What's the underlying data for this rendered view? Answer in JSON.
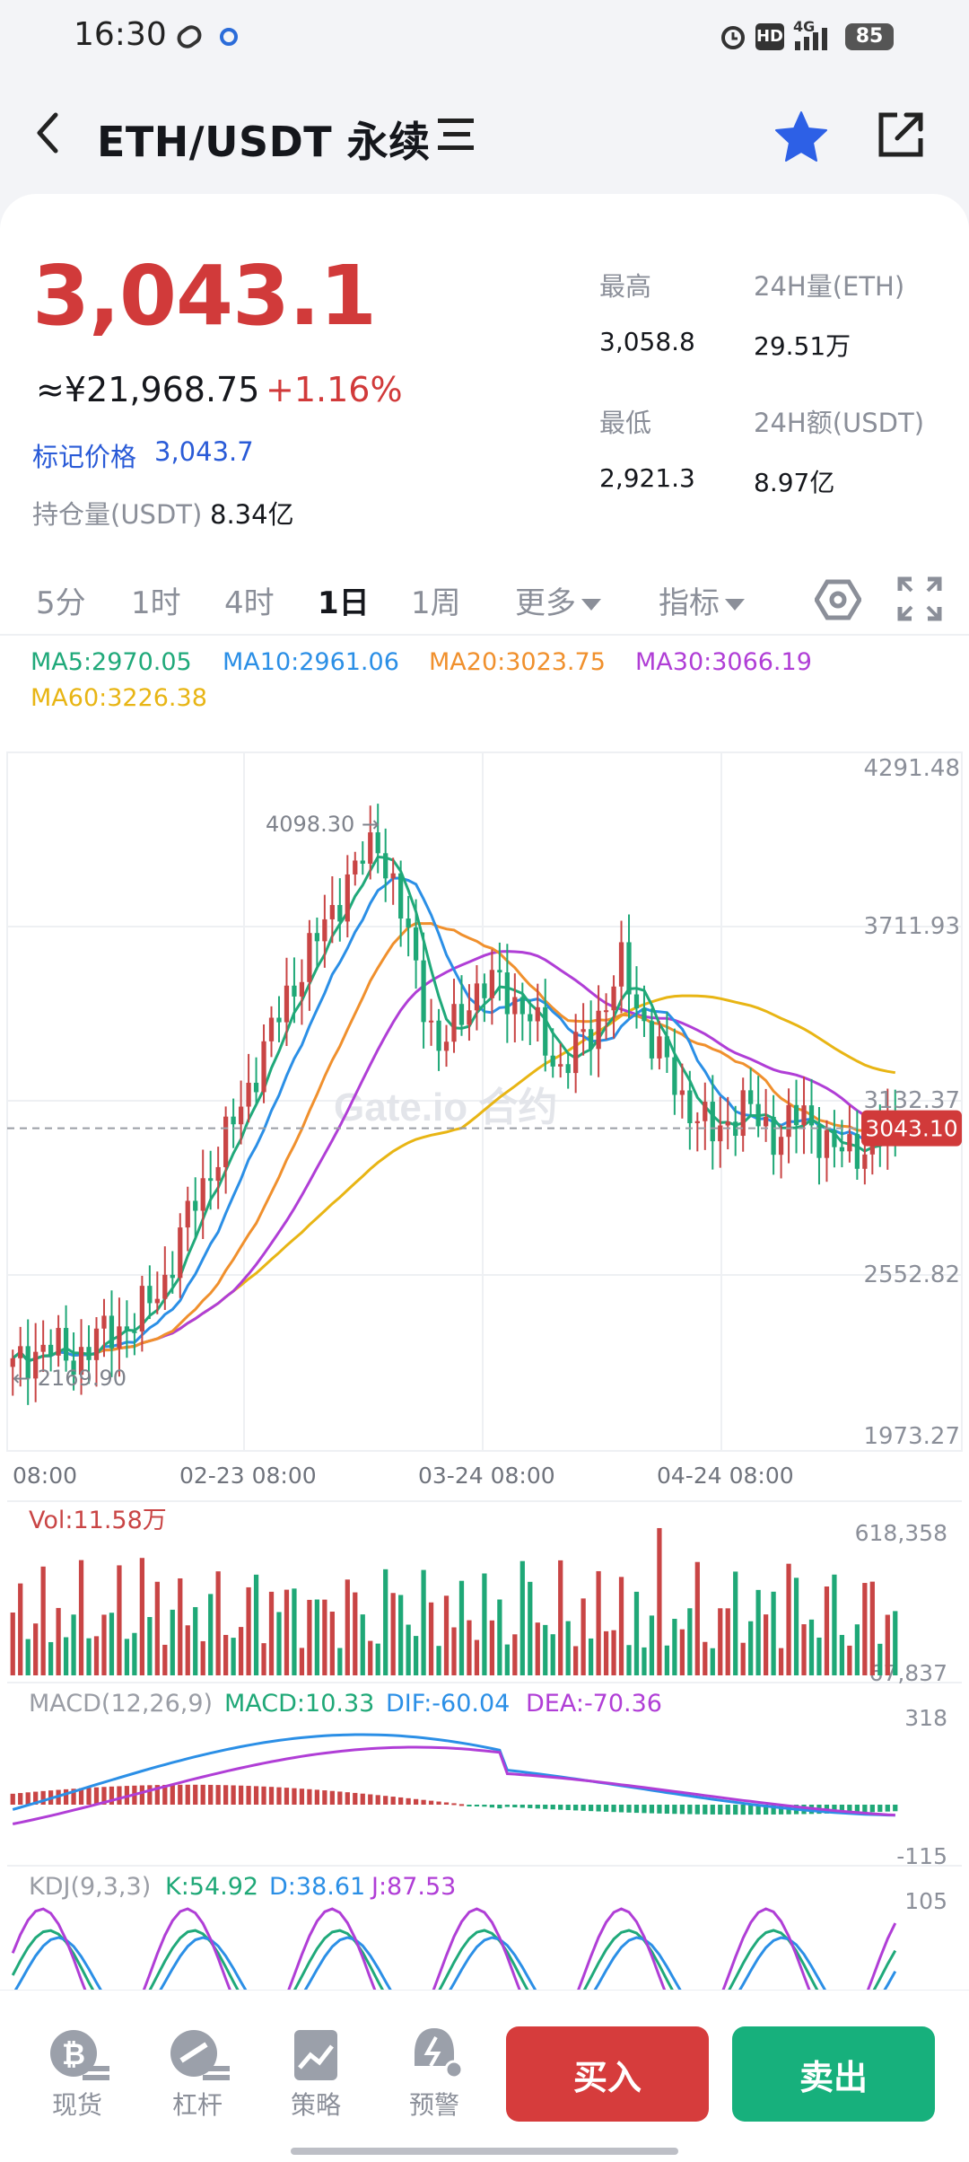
{
  "status_bar": {
    "time": "16:30",
    "battery": "85",
    "network": "4G",
    "hd": "HD"
  },
  "header": {
    "title": "ETH/USDT 永续"
  },
  "ticker": {
    "last_price": "3,043.1",
    "cny_price": "≈¥21,968.75",
    "change_pct": "+1.16%",
    "mark_label": "标记价格",
    "mark_value": "3,043.7",
    "oi_label": "持仓量(USDT)",
    "oi_value": "8.34亿",
    "high_label": "最高",
    "high_value": "3,058.8",
    "low_label": "最低",
    "low_value": "2,921.3",
    "vol_label": "24H量(ETH)",
    "vol_value": "29.51万",
    "amt_label": "24H额(USDT)",
    "amt_value": "8.97亿"
  },
  "tabs": [
    {
      "label": "5分"
    },
    {
      "label": "1时"
    },
    {
      "label": "4时"
    },
    {
      "label": "1日"
    },
    {
      "label": "1周"
    },
    {
      "label": "更多"
    },
    {
      "label": "指标"
    }
  ],
  "active_tab": "1日",
  "ma_legend": {
    "ma5": "MA5:2970.05",
    "ma10": "MA10:2961.06",
    "ma20": "MA20:3023.75",
    "ma30": "MA30:3066.19",
    "ma60": "MA60:3226.38"
  },
  "colors": {
    "up": "#c94545",
    "down": "#1fa877",
    "ma5": "#20a97a",
    "ma10": "#2b8fe6",
    "ma20": "#f0902d",
    "ma30": "#b03ed6",
    "ma60": "#e8b514",
    "accent_red": "#d13a3a",
    "buy": "#d63c3c",
    "sell": "#17b07c"
  },
  "chart_data": {
    "type": "candlestick",
    "price_axis_ticks": [
      "4291.48",
      "3711.93",
      "3132.37",
      "2552.82",
      "1973.27"
    ],
    "ylim": [
      1973.27,
      4291.48
    ],
    "time_axis_ticks": [
      "08:00",
      "02-23 08:00",
      "03-24 08:00",
      "04-24 08:00"
    ],
    "last_price_tag": "3043.10",
    "last_price": 3043.1,
    "high_marker": "4098.30 →",
    "high_value": 4098.3,
    "low_marker": "← 2169.90",
    "low_value": 2169.9,
    "watermark": "Gate.io 合约",
    "candles": [
      2210,
      2290,
      2240,
      2330,
      2370,
      2520,
      2800,
      3000,
      3250,
      3500,
      3700,
      3900,
      4050,
      3700,
      3300,
      3500,
      3550,
      3420,
      3250,
      3380,
      3600,
      3350,
      3150,
      3020,
      3120,
      3020,
      3090,
      2960,
      2980,
      3043
    ],
    "volume": {
      "label": "Vol:11.58万",
      "max_tick": "618,358",
      "min_tick": "67,837"
    },
    "macd": {
      "label": "MACD(12,26,9)",
      "macd": "MACD:10.33",
      "dif": "DIF:-60.04",
      "dea": "DEA:-70.36",
      "max_tick": "318",
      "min_tick": "-115"
    },
    "kdj": {
      "label": "KDJ(9,3,3)",
      "k": "K:54.92",
      "d": "D:38.61",
      "j": "J:87.53",
      "max_tick": "105"
    }
  },
  "bottom_nav": [
    {
      "label": "现货",
      "icon": "bitcoin-icon"
    },
    {
      "label": "杠杆",
      "icon": "leverage-icon"
    },
    {
      "label": "策略",
      "icon": "strategy-icon"
    },
    {
      "label": "预警",
      "icon": "alert-icon"
    }
  ],
  "buy_label": "买入",
  "sell_label": "卖出"
}
